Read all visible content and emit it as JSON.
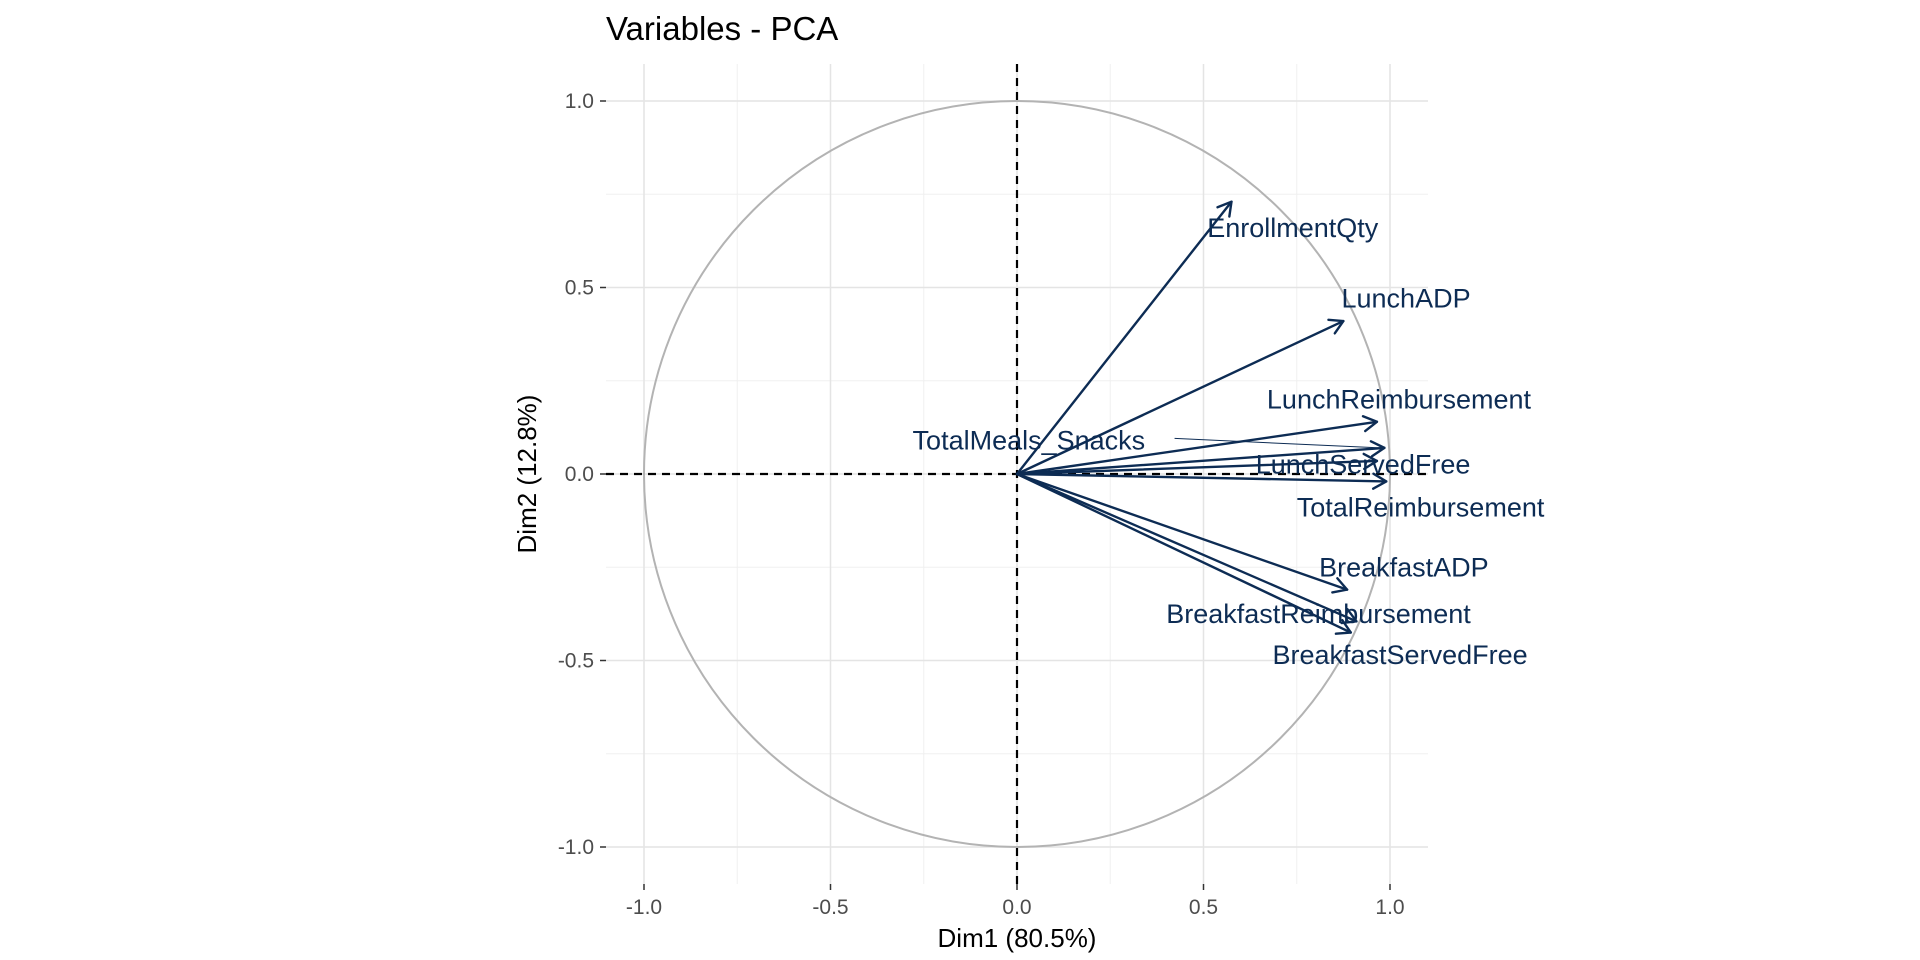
{
  "colors": {
    "vector": "#0d2c54",
    "circle": "#b3b3b3",
    "grid": "#e4e4e4",
    "zero_line": "#000000"
  },
  "chart_data": {
    "type": "scatter",
    "subtype": "pca-variable-correlation-circle",
    "title": "Variables - PCA",
    "xlabel": "Dim1 (80.5%)",
    "ylabel": "Dim2 (12.8%)",
    "xlim": [
      -1.1,
      1.1
    ],
    "ylim": [
      -1.1,
      1.1
    ],
    "x_ticks": [
      -1.0,
      -0.5,
      0.0,
      0.5,
      1.0
    ],
    "y_ticks": [
      -1.0,
      -0.5,
      0.0,
      0.5,
      1.0
    ],
    "x_tick_labels": [
      "-1.0",
      "-0.5",
      "0.0",
      "0.5",
      "1.0"
    ],
    "y_tick_labels": [
      "-1.0",
      "-0.5",
      "0.0",
      "0.5",
      "1.0"
    ],
    "grid": true,
    "unit_circle": true,
    "variables": [
      {
        "name": "EnrollmentQty",
        "x": 0.575,
        "y": 0.73,
        "label_x": 0.51,
        "label_y": 0.66,
        "leader": false
      },
      {
        "name": "LunchADP",
        "x": 0.875,
        "y": 0.41,
        "label_x": 0.87,
        "label_y": 0.47,
        "leader": false
      },
      {
        "name": "LunchReimbursement",
        "x": 0.965,
        "y": 0.14,
        "label_x": 0.67,
        "label_y": 0.2,
        "leader": false
      },
      {
        "name": "TotalMeals_Snacks",
        "x": 0.985,
        "y": 0.07,
        "label_x": -0.28,
        "label_y": 0.09,
        "leader": true
      },
      {
        "name": "LunchServedFree",
        "x": 0.965,
        "y": 0.035,
        "label_x": 0.64,
        "label_y": 0.025,
        "leader": false
      },
      {
        "name": "TotalReimbursement",
        "x": 0.99,
        "y": -0.02,
        "label_x": 0.75,
        "label_y": -0.09,
        "leader": false
      },
      {
        "name": "BreakfastADP",
        "x": 0.885,
        "y": -0.31,
        "label_x": 0.81,
        "label_y": -0.25,
        "leader": false
      },
      {
        "name": "BreakfastReimbursement",
        "x": 0.91,
        "y": -0.395,
        "label_x": 0.4,
        "label_y": -0.375,
        "leader": false
      },
      {
        "name": "BreakfastServedFree",
        "x": 0.895,
        "y": -0.425,
        "label_x": 0.685,
        "label_y": -0.485,
        "leader": false
      }
    ]
  }
}
